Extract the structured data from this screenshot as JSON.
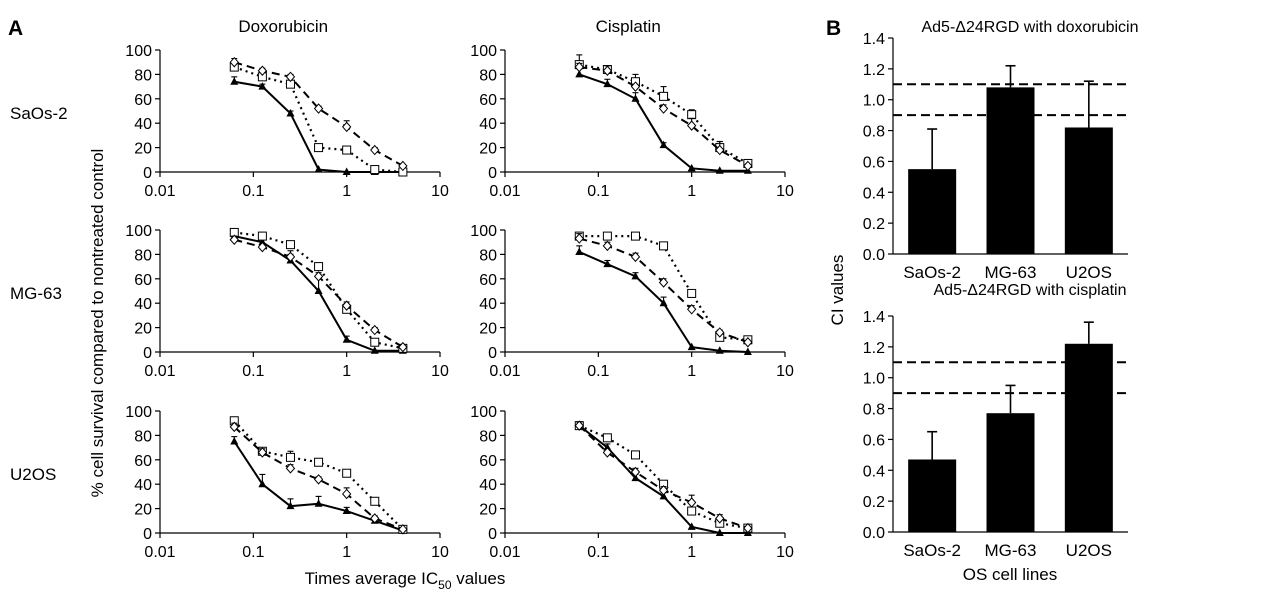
{
  "panel_labels": {
    "a": "A",
    "b": "B"
  },
  "left": {
    "columns": [
      "Doxorubicin",
      "Cisplatin"
    ],
    "rows": [
      "SaOs-2",
      "MG-63",
      "U2OS"
    ],
    "ylabel": "% cell survival compared to nontreated control",
    "xlabel_main": "Times average IC",
    "xlabel_sub": "50",
    "xlabel_tail": " values"
  },
  "right": {
    "ylabel": "CI values",
    "xlabel": "OS cell lines"
  },
  "chart_data": [
    {
      "type": "line",
      "panel": "A",
      "row": "SaOs-2",
      "column": "Doxorubicin",
      "xscale": "log",
      "xlim": [
        0.01,
        10
      ],
      "ylim": [
        0,
        100
      ],
      "x": [
        0.0625,
        0.125,
        0.25,
        0.5,
        1,
        2,
        4
      ],
      "series": [
        {
          "marker": "filled-triangle",
          "style": "solid",
          "values": [
            74,
            70,
            48,
            2,
            0,
            0,
            0
          ],
          "errors": [
            4,
            2,
            2,
            0,
            0,
            0,
            0
          ]
        },
        {
          "marker": "open-square",
          "style": "dotted",
          "values": [
            86,
            78,
            72,
            20,
            18,
            2,
            0
          ],
          "errors": [
            3,
            3,
            2,
            2,
            0,
            0,
            0
          ]
        },
        {
          "marker": "open-diamond",
          "style": "dashed",
          "values": [
            90,
            83,
            78,
            52,
            37,
            18,
            5
          ],
          "errors": [
            3,
            2,
            2,
            2,
            5,
            2,
            0
          ]
        }
      ]
    },
    {
      "type": "line",
      "panel": "A",
      "row": "SaOs-2",
      "column": "Cisplatin",
      "xscale": "log",
      "xlim": [
        0.01,
        10
      ],
      "ylim": [
        0,
        100
      ],
      "x": [
        0.0625,
        0.125,
        0.25,
        0.5,
        1,
        2,
        4
      ],
      "series": [
        {
          "marker": "filled-triangle",
          "style": "solid",
          "values": [
            80,
            72,
            60,
            22,
            3,
            1,
            1
          ],
          "errors": [
            8,
            4,
            5,
            2,
            0,
            0,
            0
          ]
        },
        {
          "marker": "open-square",
          "style": "dotted",
          "values": [
            88,
            84,
            74,
            62,
            47,
            20,
            7
          ],
          "errors": [
            8,
            3,
            6,
            8,
            4,
            5,
            0
          ]
        },
        {
          "marker": "open-diamond",
          "style": "dashed",
          "values": [
            86,
            83,
            70,
            52,
            38,
            18,
            5
          ],
          "errors": [
            3,
            4,
            2,
            3,
            6,
            7,
            0
          ]
        }
      ]
    },
    {
      "type": "line",
      "panel": "A",
      "row": "MG-63",
      "column": "Doxorubicin",
      "xscale": "log",
      "xlim": [
        0.01,
        10
      ],
      "ylim": [
        0,
        100
      ],
      "x": [
        0.0625,
        0.125,
        0.25,
        0.5,
        1,
        2,
        4
      ],
      "series": [
        {
          "marker": "filled-triangle",
          "style": "solid",
          "values": [
            95,
            90,
            75,
            50,
            10,
            1,
            1
          ],
          "errors": [
            3,
            3,
            8,
            12,
            3,
            0,
            0
          ]
        },
        {
          "marker": "open-square",
          "style": "dotted",
          "values": [
            98,
            95,
            88,
            70,
            35,
            8,
            3
          ],
          "errors": [
            2,
            3,
            2,
            3,
            3,
            2,
            2
          ]
        },
        {
          "marker": "open-diamond",
          "style": "dashed",
          "values": [
            92,
            86,
            78,
            62,
            38,
            18,
            4
          ],
          "errors": [
            3,
            2,
            2,
            3,
            3,
            2,
            0
          ]
        }
      ]
    },
    {
      "type": "line",
      "panel": "A",
      "row": "MG-63",
      "column": "Cisplatin",
      "xscale": "log",
      "xlim": [
        0.01,
        10
      ],
      "ylim": [
        0,
        100
      ],
      "x": [
        0.0625,
        0.125,
        0.25,
        0.5,
        1,
        2,
        4
      ],
      "series": [
        {
          "marker": "filled-triangle",
          "style": "solid",
          "values": [
            82,
            72,
            62,
            40,
            4,
            1,
            0
          ],
          "errors": [
            5,
            3,
            3,
            5,
            0,
            0,
            0
          ]
        },
        {
          "marker": "open-square",
          "style": "dotted",
          "values": [
            95,
            95,
            95,
            87,
            48,
            12,
            10
          ],
          "errors": [
            3,
            2,
            2,
            2,
            2,
            2,
            2
          ]
        },
        {
          "marker": "open-diamond",
          "style": "dashed",
          "values": [
            93,
            87,
            78,
            57,
            35,
            16,
            8
          ],
          "errors": [
            4,
            3,
            3,
            3,
            3,
            2,
            0
          ]
        }
      ]
    },
    {
      "type": "line",
      "panel": "A",
      "row": "U2OS",
      "column": "Doxorubicin",
      "xscale": "log",
      "xlim": [
        0.01,
        10
      ],
      "ylim": [
        0,
        100
      ],
      "x": [
        0.0625,
        0.125,
        0.25,
        0.5,
        1,
        2,
        4
      ],
      "series": [
        {
          "marker": "filled-triangle",
          "style": "solid",
          "values": [
            75,
            40,
            22,
            24,
            18,
            10,
            2
          ],
          "errors": [
            4,
            8,
            6,
            6,
            3,
            2,
            0
          ]
        },
        {
          "marker": "open-square",
          "style": "dotted",
          "values": [
            92,
            67,
            62,
            58,
            49,
            26,
            3
          ],
          "errors": [
            3,
            3,
            5,
            2,
            2,
            2,
            2
          ]
        },
        {
          "marker": "open-diamond",
          "style": "dashed",
          "values": [
            87,
            66,
            53,
            44,
            32,
            12,
            3
          ],
          "errors": [
            3,
            3,
            3,
            2,
            5,
            2,
            0
          ]
        }
      ]
    },
    {
      "type": "line",
      "panel": "A",
      "row": "U2OS",
      "column": "Cisplatin",
      "xscale": "log",
      "xlim": [
        0.01,
        10
      ],
      "ylim": [
        0,
        100
      ],
      "x": [
        0.0625,
        0.125,
        0.25,
        0.5,
        1,
        2,
        4
      ],
      "series": [
        {
          "marker": "filled-triangle",
          "style": "solid",
          "values": [
            88,
            70,
            45,
            30,
            5,
            0,
            0
          ],
          "errors": [
            3,
            3,
            3,
            3,
            0,
            0,
            0
          ]
        },
        {
          "marker": "open-square",
          "style": "dotted",
          "values": [
            88,
            78,
            64,
            40,
            18,
            8,
            4
          ],
          "errors": [
            3,
            3,
            3,
            2,
            2,
            2,
            0
          ]
        },
        {
          "marker": "open-diamond",
          "style": "dashed",
          "values": [
            88,
            66,
            50,
            35,
            25,
            12,
            4
          ],
          "errors": [
            3,
            3,
            3,
            3,
            6,
            3,
            0
          ]
        }
      ]
    },
    {
      "type": "bar",
      "panel": "B",
      "title": "Ad5-Δ24RGD with doxorubicin",
      "categories": [
        "SaOs-2",
        "MG-63",
        "U2OS"
      ],
      "values": [
        0.55,
        1.08,
        0.82
      ],
      "errors": [
        0.26,
        0.14,
        0.3
      ],
      "ylim": [
        0,
        1.4
      ],
      "reference_lines": [
        0.9,
        1.1
      ]
    },
    {
      "type": "bar",
      "panel": "B",
      "title": "Ad5-Δ24RGD with cisplatin",
      "categories": [
        "SaOs-2",
        "MG-63",
        "U2OS"
      ],
      "values": [
        0.47,
        0.77,
        1.22
      ],
      "errors": [
        0.18,
        0.18,
        0.14
      ],
      "ylim": [
        0,
        1.4
      ],
      "reference_lines": [
        0.9,
        1.1
      ]
    }
  ]
}
